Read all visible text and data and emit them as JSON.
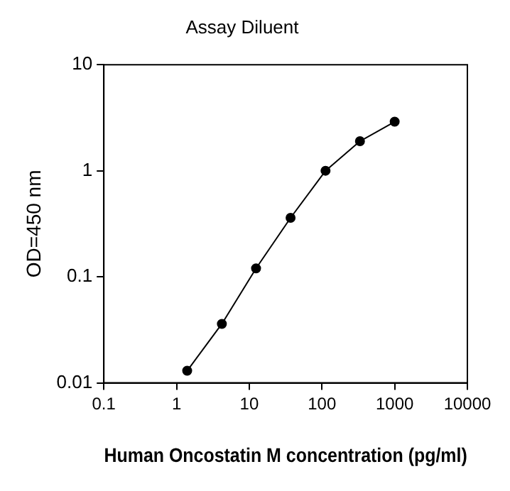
{
  "chart_data": {
    "type": "line",
    "title": "Assay Diluent",
    "xlabel": "Human Oncostatin M concentration (pg/ml)",
    "ylabel": "OD=450 nm",
    "x": [
      1.4,
      4.2,
      12.4,
      37,
      112,
      333,
      1000
    ],
    "series": [
      {
        "color": "#000000",
        "values": [
          0.013,
          0.036,
          0.12,
          0.36,
          1.0,
          1.9,
          2.9
        ]
      }
    ],
    "log": "xy",
    "xlim": [
      0.1,
      10000
    ],
    "xticks": [
      0.1,
      1,
      10,
      100,
      1000,
      10000
    ],
    "ylim": [
      0.01,
      10
    ],
    "yticks": [
      0.01,
      0.1,
      1,
      10
    ],
    "grid": false,
    "legend": false,
    "marker": "circle",
    "line_style": "solid"
  }
}
